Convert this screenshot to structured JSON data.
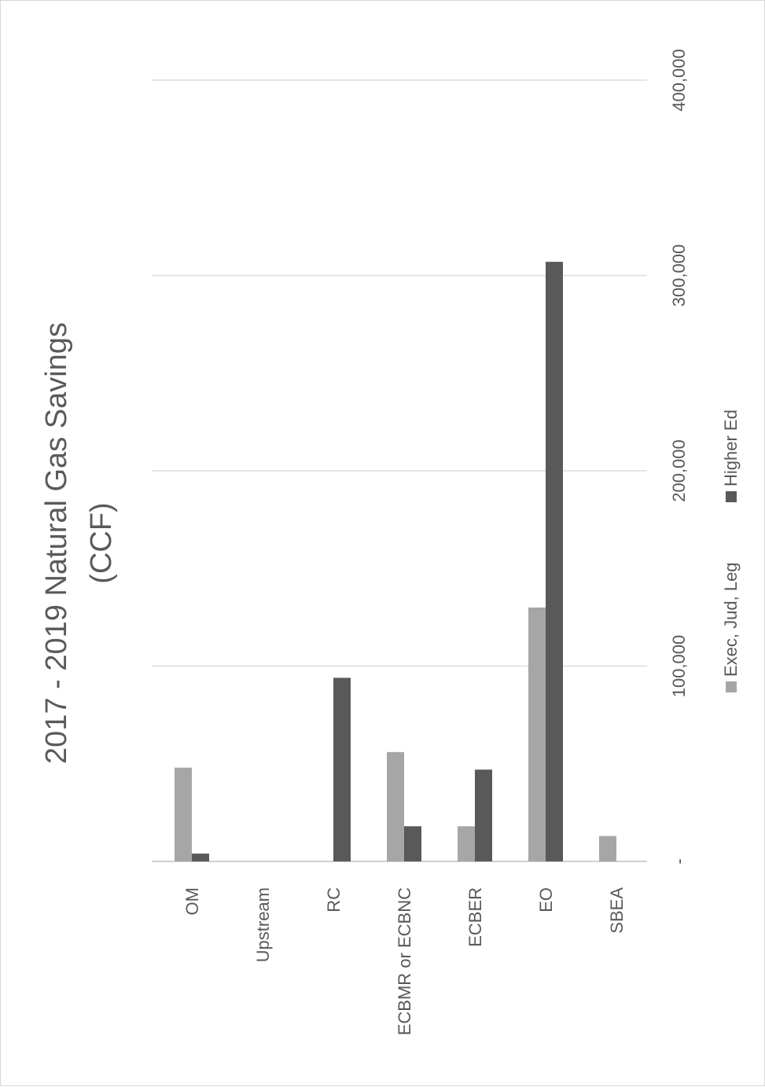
{
  "chart_data": {
    "type": "bar",
    "orientation": "vertical",
    "title_line1": "2017 - 2019 Natural Gas Savings",
    "title_line2": "(CCF)",
    "categories": [
      "OM",
      "Upstream",
      "RC",
      "ECBMR or ECBNC",
      "ECBER",
      "EO",
      "SBEA"
    ],
    "series": [
      {
        "name": "Exec, Jud, Leg",
        "color": "#a6a6a6",
        "values": [
          48000,
          0,
          0,
          56000,
          18000,
          130000,
          13000
        ]
      },
      {
        "name": "Higher Ed",
        "color": "#595959",
        "values": [
          4000,
          0,
          94000,
          18000,
          47000,
          307000,
          0
        ]
      }
    ],
    "ylim": [
      0,
      400000
    ],
    "y_ticks": [
      "-",
      "100,000",
      "200,000",
      "300,000",
      "400,000"
    ],
    "grid": true,
    "legend_position": "bottom"
  }
}
